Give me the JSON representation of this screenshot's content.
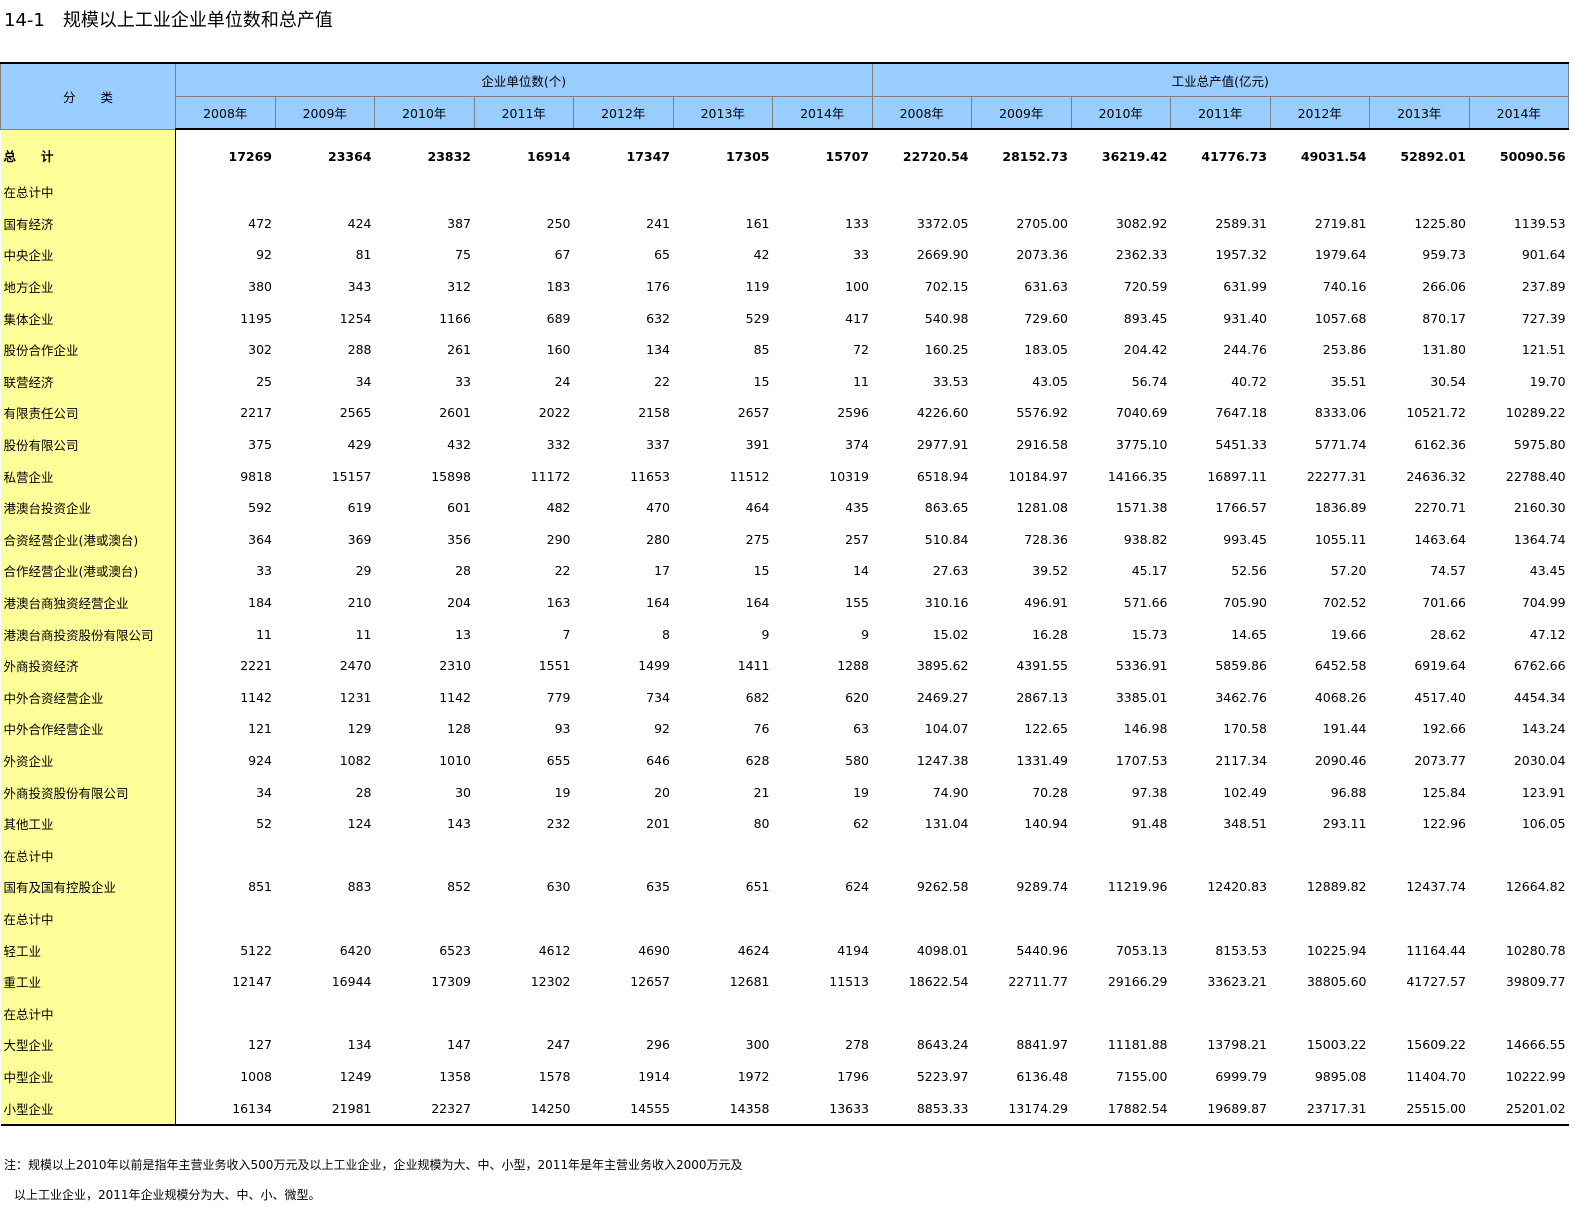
{
  "title": "14-1　规模以上工业企业单位数和总产值",
  "table": {
    "header": {
      "category": "分　　类",
      "groups": [
        {
          "title": "企业单位数(个)",
          "years": [
            "2008年",
            "2009年",
            "2010年",
            "2011年",
            "2012年",
            "2013年",
            "2014年"
          ]
        },
        {
          "title": "工业总产值(亿元)",
          "years": [
            "2008年",
            "2009年",
            "2010年",
            "2011年",
            "2012年",
            "2013年",
            "2014年"
          ]
        }
      ]
    },
    "rows": [
      {
        "label": "总　　计",
        "values": [
          "17269",
          "23364",
          "23832",
          "16914",
          "17347",
          "17305",
          "15707",
          "22720.54",
          "28152.73",
          "36219.42",
          "41776.73",
          "49031.54",
          "52892.01",
          "50090.56"
        ]
      },
      {
        "label": "在总计中"
      },
      {
        "label": "国有经济",
        "values": [
          "472",
          "424",
          "387",
          "250",
          "241",
          "161",
          "133",
          "3372.05",
          "2705.00",
          "3082.92",
          "2589.31",
          "2719.81",
          "1225.80",
          "1139.53"
        ]
      },
      {
        "label": "中央企业",
        "values": [
          "92",
          "81",
          "75",
          "67",
          "65",
          "42",
          "33",
          "2669.90",
          "2073.36",
          "2362.33",
          "1957.32",
          "1979.64",
          "959.73",
          "901.64"
        ]
      },
      {
        "label": "地方企业",
        "values": [
          "380",
          "343",
          "312",
          "183",
          "176",
          "119",
          "100",
          "702.15",
          "631.63",
          "720.59",
          "631.99",
          "740.16",
          "266.06",
          "237.89"
        ]
      },
      {
        "label": "集体企业",
        "values": [
          "1195",
          "1254",
          "1166",
          "689",
          "632",
          "529",
          "417",
          "540.98",
          "729.60",
          "893.45",
          "931.40",
          "1057.68",
          "870.17",
          "727.39"
        ]
      },
      {
        "label": "股份合作企业",
        "values": [
          "302",
          "288",
          "261",
          "160",
          "134",
          "85",
          "72",
          "160.25",
          "183.05",
          "204.42",
          "244.76",
          "253.86",
          "131.80",
          "121.51"
        ]
      },
      {
        "label": "联营经济",
        "values": [
          "25",
          "34",
          "33",
          "24",
          "22",
          "15",
          "11",
          "33.53",
          "43.05",
          "56.74",
          "40.72",
          "35.51",
          "30.54",
          "19.70"
        ]
      },
      {
        "label": "有限责任公司",
        "values": [
          "2217",
          "2565",
          "2601",
          "2022",
          "2158",
          "2657",
          "2596",
          "4226.60",
          "5576.92",
          "7040.69",
          "7647.18",
          "8333.06",
          "10521.72",
          "10289.22"
        ]
      },
      {
        "label": "股份有限公司",
        "values": [
          "375",
          "429",
          "432",
          "332",
          "337",
          "391",
          "374",
          "2977.91",
          "2916.58",
          "3775.10",
          "5451.33",
          "5771.74",
          "6162.36",
          "5975.80"
        ]
      },
      {
        "label": "私营企业",
        "values": [
          "9818",
          "15157",
          "15898",
          "11172",
          "11653",
          "11512",
          "10319",
          "6518.94",
          "10184.97",
          "14166.35",
          "16897.11",
          "22277.31",
          "24636.32",
          "22788.40"
        ]
      },
      {
        "label": "港澳台投资企业",
        "values": [
          "592",
          "619",
          "601",
          "482",
          "470",
          "464",
          "435",
          "863.65",
          "1281.08",
          "1571.38",
          "1766.57",
          "1836.89",
          "2270.71",
          "2160.30"
        ]
      },
      {
        "label": "合资经营企业(港或澳台)",
        "values": [
          "364",
          "369",
          "356",
          "290",
          "280",
          "275",
          "257",
          "510.84",
          "728.36",
          "938.82",
          "993.45",
          "1055.11",
          "1463.64",
          "1364.74"
        ]
      },
      {
        "label": "合作经营企业(港或澳台)",
        "values": [
          "33",
          "29",
          "28",
          "22",
          "17",
          "15",
          "14",
          "27.63",
          "39.52",
          "45.17",
          "52.56",
          "57.20",
          "74.57",
          "43.45"
        ]
      },
      {
        "label": "港澳台商独资经营企业",
        "values": [
          "184",
          "210",
          "204",
          "163",
          "164",
          "164",
          "155",
          "310.16",
          "496.91",
          "571.66",
          "705.90",
          "702.52",
          "701.66",
          "704.99"
        ]
      },
      {
        "label": "港澳台商投资股份有限公司",
        "values": [
          "11",
          "11",
          "13",
          "7",
          "8",
          "9",
          "9",
          "15.02",
          "16.28",
          "15.73",
          "14.65",
          "19.66",
          "28.62",
          "47.12"
        ]
      },
      {
        "label": "外商投资经济",
        "values": [
          "2221",
          "2470",
          "2310",
          "1551",
          "1499",
          "1411",
          "1288",
          "3895.62",
          "4391.55",
          "5336.91",
          "5859.86",
          "6452.58",
          "6919.64",
          "6762.66"
        ]
      },
      {
        "label": "中外合资经营企业",
        "values": [
          "1142",
          "1231",
          "1142",
          "779",
          "734",
          "682",
          "620",
          "2469.27",
          "2867.13",
          "3385.01",
          "3462.76",
          "4068.26",
          "4517.40",
          "4454.34"
        ]
      },
      {
        "label": "中外合作经营企业",
        "values": [
          "121",
          "129",
          "128",
          "93",
          "92",
          "76",
          "63",
          "104.07",
          "122.65",
          "146.98",
          "170.58",
          "191.44",
          "192.66",
          "143.24"
        ]
      },
      {
        "label": "外资企业",
        "values": [
          "924",
          "1082",
          "1010",
          "655",
          "646",
          "628",
          "580",
          "1247.38",
          "1331.49",
          "1707.53",
          "2117.34",
          "2090.46",
          "2073.77",
          "2030.04"
        ]
      },
      {
        "label": "外商投资股份有限公司",
        "values": [
          "34",
          "28",
          "30",
          "19",
          "20",
          "21",
          "19",
          "74.90",
          "70.28",
          "97.38",
          "102.49",
          "96.88",
          "125.84",
          "123.91"
        ]
      },
      {
        "label": "其他工业",
        "values": [
          "52",
          "124",
          "143",
          "232",
          "201",
          "80",
          "62",
          "131.04",
          "140.94",
          "91.48",
          "348.51",
          "293.11",
          "122.96",
          "106.05"
        ]
      },
      {
        "label": "在总计中"
      },
      {
        "label": "国有及国有控股企业",
        "values": [
          "851",
          "883",
          "852",
          "630",
          "635",
          "651",
          "624",
          "9262.58",
          "9289.74",
          "11219.96",
          "12420.83",
          "12889.82",
          "12437.74",
          "12664.82"
        ]
      },
      {
        "label": "在总计中"
      },
      {
        "label": "轻工业",
        "values": [
          "5122",
          "6420",
          "6523",
          "4612",
          "4690",
          "4624",
          "4194",
          "4098.01",
          "5440.96",
          "7053.13",
          "8153.53",
          "10225.94",
          "11164.44",
          "10280.78"
        ]
      },
      {
        "label": "重工业",
        "values": [
          "12147",
          "16944",
          "17309",
          "12302",
          "12657",
          "12681",
          "11513",
          "18622.54",
          "22711.77",
          "29166.29",
          "33623.21",
          "38805.60",
          "41727.57",
          "39809.77"
        ]
      },
      {
        "label": "在总计中"
      },
      {
        "label": "大型企业",
        "values": [
          "127",
          "134",
          "147",
          "247",
          "296",
          "300",
          "278",
          "8643.24",
          "8841.97",
          "11181.88",
          "13798.21",
          "15003.22",
          "15609.22",
          "14666.55"
        ]
      },
      {
        "label": "中型企业",
        "values": [
          "1008",
          "1249",
          "1358",
          "1578",
          "1914",
          "1972",
          "1796",
          "5223.97",
          "6136.48",
          "7155.00",
          "6999.79",
          "9895.08",
          "11404.70",
          "10222.99"
        ]
      },
      {
        "label": "小型企业",
        "values": [
          "16134",
          "21981",
          "22327",
          "14250",
          "14555",
          "14358",
          "13633",
          "8853.33",
          "13174.29",
          "17882.54",
          "19689.87",
          "23717.31",
          "25515.00",
          "25201.02"
        ]
      }
    ]
  },
  "notes": [
    "注：规模以上2010年以前是指年主营业务收入500万元及以上工业企业，企业规模为大、中、小型，2011年是年主营业务收入2000万元及",
    "以上工业企业，2011年企业规模分为大、中、小、微型。"
  ]
}
